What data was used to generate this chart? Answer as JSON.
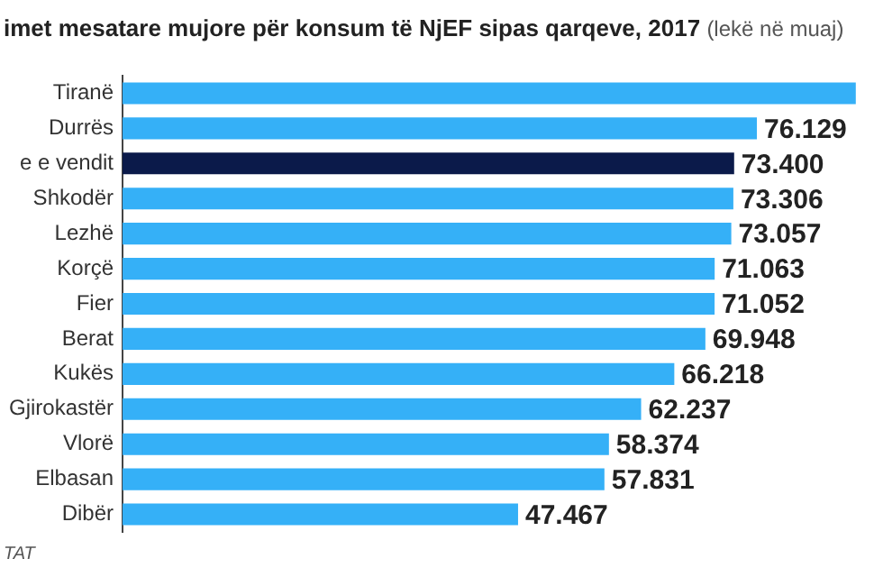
{
  "chart_data": {
    "type": "bar",
    "orientation": "horizontal",
    "title": "imet mesatare mujore për konsum të NjEF sipas qarqeve, 2017",
    "subtitle": "(lekë në muaj)",
    "categories": [
      "Tiranë",
      "Durrës",
      "e e vendit",
      "Shkodër",
      "Lezhë",
      "Korçë",
      "Fier",
      "Berat",
      "Kukës",
      "Gjirokastër",
      "Vlorë",
      "Elbasan",
      "Dibër"
    ],
    "values": [
      88,
      76.129,
      73.4,
      73.306,
      73.057,
      71.063,
      71.052,
      69.948,
      66.218,
      62.237,
      58.374,
      57.831,
      47.467
    ],
    "value_labels": [
      null,
      "76.129",
      "73.400",
      "73.306",
      "73.057",
      "71.063",
      "71.052",
      "69.948",
      "66.218",
      "62.237",
      "58.374",
      "57.831",
      "47.467"
    ],
    "colors": [
      "#35b0f7",
      "#35b0f7",
      "#0b1a4a",
      "#35b0f7",
      "#35b0f7",
      "#35b0f7",
      "#35b0f7",
      "#35b0f7",
      "#35b0f7",
      "#35b0f7",
      "#35b0f7",
      "#35b0f7",
      "#35b0f7"
    ],
    "annotations": [
      "TAT"
    ],
    "legend": false
  }
}
